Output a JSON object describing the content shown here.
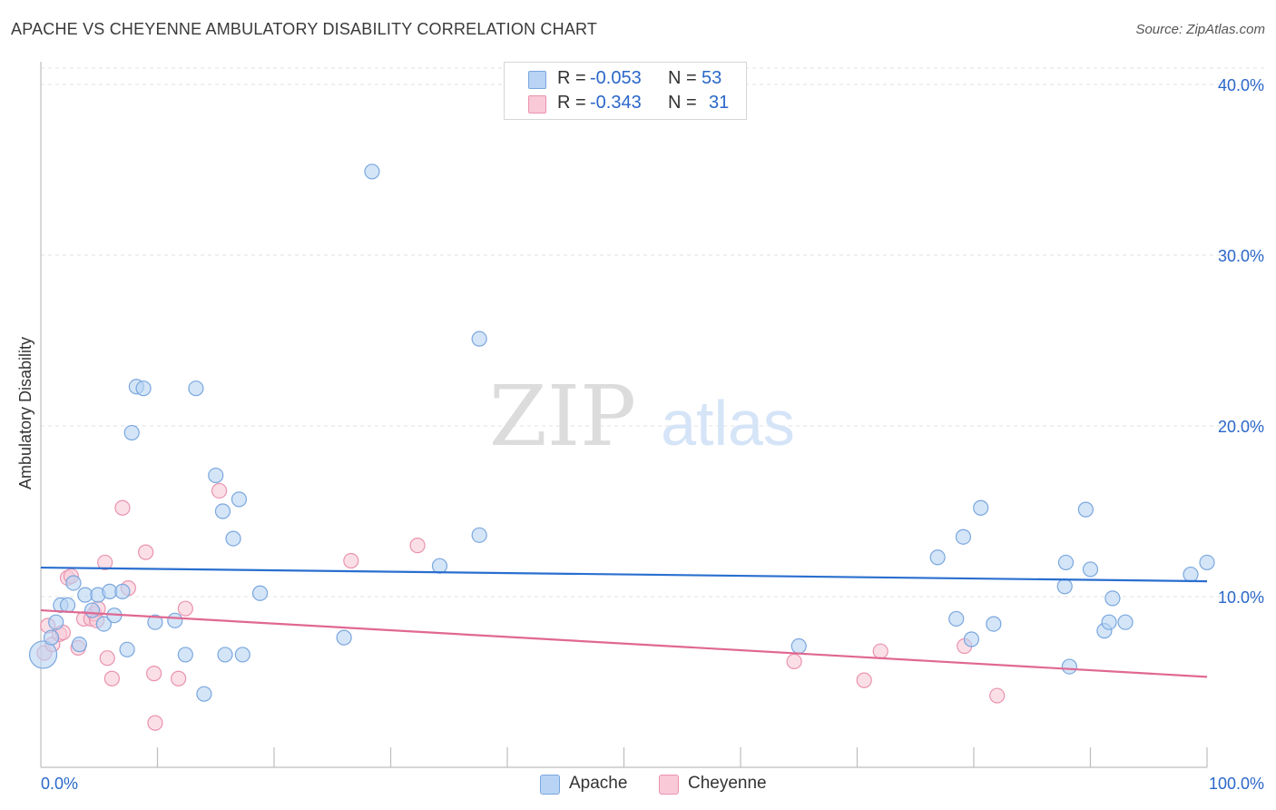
{
  "header": {
    "title": "APACHE VS CHEYENNE AMBULATORY DISABILITY CORRELATION CHART",
    "source": "Source: ZipAtlas.com"
  },
  "legend": {
    "rows": [
      {
        "r_label": "R =",
        "r_value": "-0.053",
        "n_label": "N =",
        "n_value": "53"
      },
      {
        "r_label": "R =",
        "r_value": "-0.343",
        "n_label": "N =",
        "n_value": "31"
      }
    ]
  },
  "colors": {
    "apache_fill": "#b8d3f4",
    "apache_stroke": "#7aa7de",
    "apache_line": "#2a6fcf",
    "cheyenne_fill": "#f9c9d7",
    "cheyenne_stroke": "#ea93ae",
    "cheyenne_line": "#e06892",
    "tick_label": "#2a67c9"
  },
  "watermark": {
    "part1": "ZIP",
    "part2": "atlas"
  },
  "chart_data": {
    "type": "scatter",
    "title": "APACHE VS CHEYENNE AMBULATORY DISABILITY CORRELATION CHART",
    "xlabel": "",
    "ylabel": "Ambulatory Disability",
    "xlim": [
      0,
      100
    ],
    "ylim": [
      0,
      40.96
    ],
    "x_tick_labels": [
      "0.0%",
      "100.0%"
    ],
    "y_ticks": [
      10,
      20,
      30,
      40
    ],
    "y_tick_labels": [
      "10.0%",
      "20.0%",
      "30.0%",
      "40.0%"
    ],
    "grid": true,
    "legend_position": "top-center",
    "series": [
      {
        "name": "Apache",
        "trend": {
          "x": [
            0,
            100
          ],
          "y": [
            11.7,
            10.9
          ]
        },
        "points": [
          {
            "x": 0.2,
            "y": 6.6,
            "big": true
          },
          {
            "x": 0.9,
            "y": 7.6
          },
          {
            "x": 1.3,
            "y": 8.5
          },
          {
            "x": 1.7,
            "y": 9.5
          },
          {
            "x": 2.3,
            "y": 9.5
          },
          {
            "x": 2.8,
            "y": 10.8
          },
          {
            "x": 3.3,
            "y": 7.2
          },
          {
            "x": 3.8,
            "y": 10.1
          },
          {
            "x": 4.4,
            "y": 9.2
          },
          {
            "x": 4.9,
            "y": 10.1
          },
          {
            "x": 5.4,
            "y": 8.4
          },
          {
            "x": 5.9,
            "y": 10.3
          },
          {
            "x": 6.3,
            "y": 8.9
          },
          {
            "x": 7.0,
            "y": 10.3
          },
          {
            "x": 7.4,
            "y": 6.9
          },
          {
            "x": 7.8,
            "y": 19.6
          },
          {
            "x": 8.2,
            "y": 22.3
          },
          {
            "x": 8.8,
            "y": 22.2
          },
          {
            "x": 9.8,
            "y": 8.5
          },
          {
            "x": 11.5,
            "y": 8.6
          },
          {
            "x": 12.4,
            "y": 6.6
          },
          {
            "x": 13.3,
            "y": 22.2
          },
          {
            "x": 14.0,
            "y": 4.3
          },
          {
            "x": 15.0,
            "y": 17.1
          },
          {
            "x": 15.6,
            "y": 15.0
          },
          {
            "x": 15.8,
            "y": 6.6
          },
          {
            "x": 16.5,
            "y": 13.4
          },
          {
            "x": 17.0,
            "y": 15.7
          },
          {
            "x": 17.3,
            "y": 6.6
          },
          {
            "x": 18.8,
            "y": 10.2
          },
          {
            "x": 26.0,
            "y": 7.6
          },
          {
            "x": 28.4,
            "y": 34.9
          },
          {
            "x": 34.2,
            "y": 11.8
          },
          {
            "x": 37.6,
            "y": 25.1
          },
          {
            "x": 37.6,
            "y": 13.6
          },
          {
            "x": 65.0,
            "y": 7.1
          },
          {
            "x": 76.9,
            "y": 12.3
          },
          {
            "x": 78.5,
            "y": 8.7
          },
          {
            "x": 79.1,
            "y": 13.5
          },
          {
            "x": 79.8,
            "y": 7.5
          },
          {
            "x": 80.6,
            "y": 15.2
          },
          {
            "x": 81.7,
            "y": 8.4
          },
          {
            "x": 87.8,
            "y": 10.6
          },
          {
            "x": 87.9,
            "y": 12.0
          },
          {
            "x": 88.2,
            "y": 5.9
          },
          {
            "x": 89.6,
            "y": 15.1
          },
          {
            "x": 90.0,
            "y": 11.6
          },
          {
            "x": 91.2,
            "y": 8.0
          },
          {
            "x": 91.6,
            "y": 8.5
          },
          {
            "x": 91.9,
            "y": 9.9
          },
          {
            "x": 93.0,
            "y": 8.5
          },
          {
            "x": 98.6,
            "y": 11.3
          },
          {
            "x": 100.0,
            "y": 12.0
          }
        ]
      },
      {
        "name": "Cheyenne",
        "trend": {
          "x": [
            0,
            100
          ],
          "y": [
            9.2,
            5.3
          ]
        },
        "points": [
          {
            "x": 0.3,
            "y": 6.7
          },
          {
            "x": 0.6,
            "y": 8.3
          },
          {
            "x": 1.0,
            "y": 7.2
          },
          {
            "x": 1.6,
            "y": 7.8
          },
          {
            "x": 1.9,
            "y": 7.9
          },
          {
            "x": 2.3,
            "y": 11.1
          },
          {
            "x": 2.6,
            "y": 11.2
          },
          {
            "x": 3.2,
            "y": 7.0
          },
          {
            "x": 3.7,
            "y": 8.7
          },
          {
            "x": 4.3,
            "y": 8.7
          },
          {
            "x": 4.6,
            "y": 9.0
          },
          {
            "x": 4.8,
            "y": 8.6
          },
          {
            "x": 4.9,
            "y": 9.3
          },
          {
            "x": 5.5,
            "y": 12.0
          },
          {
            "x": 5.7,
            "y": 6.4
          },
          {
            "x": 6.1,
            "y": 5.2
          },
          {
            "x": 7.0,
            "y": 15.2
          },
          {
            "x": 7.5,
            "y": 10.5
          },
          {
            "x": 9.0,
            "y": 12.6
          },
          {
            "x": 9.7,
            "y": 5.5
          },
          {
            "x": 9.8,
            "y": 2.6
          },
          {
            "x": 11.8,
            "y": 5.2
          },
          {
            "x": 12.4,
            "y": 9.3
          },
          {
            "x": 15.3,
            "y": 16.2
          },
          {
            "x": 26.6,
            "y": 12.1
          },
          {
            "x": 32.3,
            "y": 13.0
          },
          {
            "x": 64.6,
            "y": 6.2
          },
          {
            "x": 70.6,
            "y": 5.1
          },
          {
            "x": 72.0,
            "y": 6.8
          },
          {
            "x": 79.2,
            "y": 7.1
          },
          {
            "x": 82.0,
            "y": 4.2
          }
        ]
      }
    ]
  },
  "bottom_legend": {
    "items": [
      {
        "label": "Apache"
      },
      {
        "label": "Cheyenne"
      }
    ]
  }
}
